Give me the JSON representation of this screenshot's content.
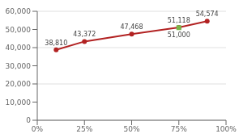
{
  "chart_data": {
    "type": "line",
    "x": [
      0.1,
      0.25,
      0.5,
      0.75,
      0.9
    ],
    "xlim": [
      0.0,
      1.0
    ],
    "xticks": [
      {
        "value": 0.0,
        "label": "0%"
      },
      {
        "value": 0.25,
        "label": "25%"
      },
      {
        "value": 0.5,
        "label": "50%"
      },
      {
        "value": 0.75,
        "label": "75%"
      },
      {
        "value": 1.0,
        "label": "100%"
      }
    ],
    "ylim": [
      0,
      60000
    ],
    "yticks": [
      0,
      {
        "value": 10000,
        "label": "10,000"
      },
      {
        "value": 20000,
        "label": "20,000"
      },
      {
        "value": 30000,
        "label": "30,000"
      },
      {
        "value": 40000,
        "label": "40,000"
      },
      {
        "value": 50000,
        "label": "50,000"
      },
      {
        "value": 60000,
        "label": "60,000"
      }
    ],
    "grid": "y",
    "data_labels": true,
    "series": [
      {
        "color": "#b22222",
        "marker": "circle",
        "values": [
          38810,
          43372,
          47468,
          51118,
          54574
        ],
        "value_labels": [
          "38,810",
          "43,372",
          "47,468",
          "51,118",
          "54,574"
        ]
      },
      {
        "type": "scatter",
        "color": "#7ab648",
        "marker": "square",
        "values": [
          null,
          null,
          null,
          51000,
          null
        ],
        "value_labels": [
          null,
          null,
          null,
          "51,000",
          null
        ]
      }
    ]
  }
}
